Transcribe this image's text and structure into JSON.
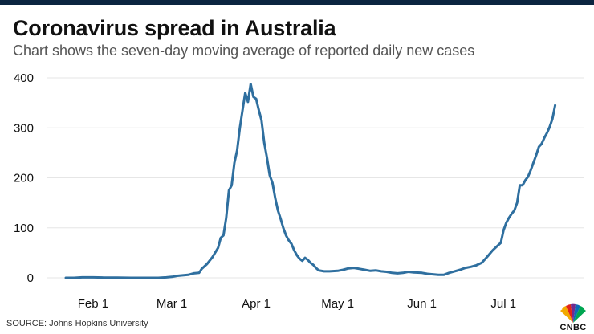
{
  "header": {
    "title": "Coronavirus spread in Australia",
    "subtitle": "Chart shows the seven-day moving average of reported daily new cases"
  },
  "footer": {
    "source": "SOURCE: Johns Hopkins University",
    "logo_text": "CNBC",
    "logo_icon": "nbc-peacock-icon"
  },
  "colors": {
    "line": "#2f6f9f",
    "grid": "#e6e6e6",
    "topbar": "#0b2540"
  },
  "chart_data": {
    "type": "line",
    "title": "Coronavirus spread in Australia",
    "subtitle": "Chart shows the seven-day moving average of reported daily new cases",
    "xlabel": "",
    "ylabel": "",
    "x_range": [
      "2020-01-22",
      "2020-07-21"
    ],
    "ylim": [
      0,
      400
    ],
    "grid": true,
    "x_ticks": [
      {
        "label": "Feb 1",
        "date": "2020-02-01"
      },
      {
        "label": "Mar 1",
        "date": "2020-03-01"
      },
      {
        "label": "Apr 1",
        "date": "2020-04-01"
      },
      {
        "label": "May 1",
        "date": "2020-05-01"
      },
      {
        "label": "Jun 1",
        "date": "2020-06-01"
      },
      {
        "label": "Jul 1",
        "date": "2020-07-01"
      }
    ],
    "y_ticks": [
      0,
      100,
      200,
      300,
      400
    ],
    "series": [
      {
        "name": "",
        "points": [
          [
            "2020-01-22",
            0
          ],
          [
            "2020-01-25",
            0
          ],
          [
            "2020-01-28",
            1
          ],
          [
            "2020-02-01",
            1
          ],
          [
            "2020-02-05",
            0.5
          ],
          [
            "2020-02-10",
            0.3
          ],
          [
            "2020-02-15",
            0
          ],
          [
            "2020-02-20",
            0
          ],
          [
            "2020-02-25",
            0
          ],
          [
            "2020-02-28",
            1
          ],
          [
            "2020-03-01",
            2
          ],
          [
            "2020-03-03",
            4
          ],
          [
            "2020-03-05",
            5
          ],
          [
            "2020-03-07",
            6
          ],
          [
            "2020-03-09",
            9
          ],
          [
            "2020-03-11",
            10
          ],
          [
            "2020-03-12",
            18
          ],
          [
            "2020-03-14",
            28
          ],
          [
            "2020-03-16",
            42
          ],
          [
            "2020-03-18",
            60
          ],
          [
            "2020-03-19",
            80
          ],
          [
            "2020-03-20",
            85
          ],
          [
            "2020-03-21",
            120
          ],
          [
            "2020-03-22",
            175
          ],
          [
            "2020-03-23",
            185
          ],
          [
            "2020-03-24",
            230
          ],
          [
            "2020-03-25",
            255
          ],
          [
            "2020-03-26",
            300
          ],
          [
            "2020-03-27",
            335
          ],
          [
            "2020-03-28",
            370
          ],
          [
            "2020-03-29",
            352
          ],
          [
            "2020-03-30",
            388
          ],
          [
            "2020-03-31",
            362
          ],
          [
            "2020-04-01",
            358
          ],
          [
            "2020-04-02",
            335
          ],
          [
            "2020-04-03",
            315
          ],
          [
            "2020-04-04",
            270
          ],
          [
            "2020-04-05",
            240
          ],
          [
            "2020-04-06",
            205
          ],
          [
            "2020-04-07",
            190
          ],
          [
            "2020-04-08",
            160
          ],
          [
            "2020-04-09",
            135
          ],
          [
            "2020-04-10",
            118
          ],
          [
            "2020-04-11",
            100
          ],
          [
            "2020-04-12",
            85
          ],
          [
            "2020-04-13",
            75
          ],
          [
            "2020-04-14",
            68
          ],
          [
            "2020-04-15",
            55
          ],
          [
            "2020-04-16",
            45
          ],
          [
            "2020-04-17",
            38
          ],
          [
            "2020-04-18",
            34
          ],
          [
            "2020-04-19",
            40
          ],
          [
            "2020-04-20",
            36
          ],
          [
            "2020-04-21",
            30
          ],
          [
            "2020-04-22",
            26
          ],
          [
            "2020-04-23",
            20
          ],
          [
            "2020-04-24",
            15
          ],
          [
            "2020-04-26",
            13
          ],
          [
            "2020-04-28",
            13
          ],
          [
            "2020-05-01",
            14
          ],
          [
            "2020-05-03",
            16
          ],
          [
            "2020-05-05",
            19
          ],
          [
            "2020-05-07",
            20
          ],
          [
            "2020-05-09",
            18
          ],
          [
            "2020-05-11",
            16
          ],
          [
            "2020-05-13",
            14
          ],
          [
            "2020-05-15",
            15
          ],
          [
            "2020-05-17",
            13
          ],
          [
            "2020-05-19",
            12
          ],
          [
            "2020-05-21",
            10
          ],
          [
            "2020-05-23",
            9
          ],
          [
            "2020-05-25",
            10
          ],
          [
            "2020-05-27",
            12
          ],
          [
            "2020-05-29",
            11
          ],
          [
            "2020-06-01",
            10
          ],
          [
            "2020-06-03",
            8
          ],
          [
            "2020-06-05",
            7
          ],
          [
            "2020-06-07",
            6
          ],
          [
            "2020-06-09",
            6
          ],
          [
            "2020-06-11",
            10
          ],
          [
            "2020-06-13",
            13
          ],
          [
            "2020-06-15",
            16
          ],
          [
            "2020-06-17",
            20
          ],
          [
            "2020-06-19",
            22
          ],
          [
            "2020-06-21",
            25
          ],
          [
            "2020-06-23",
            30
          ],
          [
            "2020-06-25",
            42
          ],
          [
            "2020-06-27",
            55
          ],
          [
            "2020-06-29",
            65
          ],
          [
            "2020-06-30",
            70
          ],
          [
            "2020-07-01",
            95
          ],
          [
            "2020-07-02",
            110
          ],
          [
            "2020-07-03",
            120
          ],
          [
            "2020-07-04",
            128
          ],
          [
            "2020-07-05",
            135
          ],
          [
            "2020-07-06",
            150
          ],
          [
            "2020-07-07",
            185
          ],
          [
            "2020-07-08",
            185
          ],
          [
            "2020-07-09",
            195
          ],
          [
            "2020-07-10",
            202
          ],
          [
            "2020-07-11",
            215
          ],
          [
            "2020-07-12",
            230
          ],
          [
            "2020-07-13",
            245
          ],
          [
            "2020-07-14",
            262
          ],
          [
            "2020-07-15",
            268
          ],
          [
            "2020-07-16",
            280
          ],
          [
            "2020-07-17",
            290
          ],
          [
            "2020-07-18",
            302
          ],
          [
            "2020-07-19",
            318
          ],
          [
            "2020-07-20",
            345
          ]
        ]
      }
    ]
  }
}
